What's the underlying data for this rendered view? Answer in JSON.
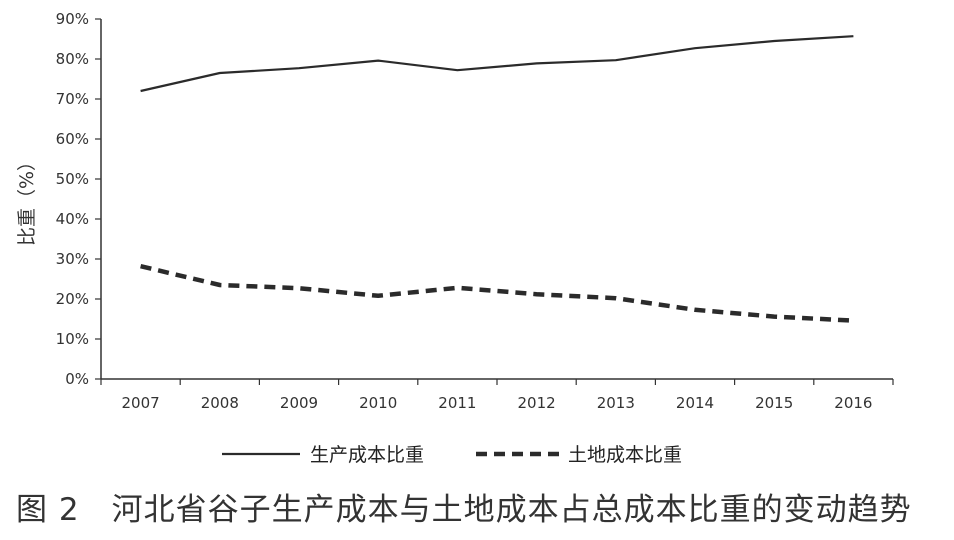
{
  "caption": "图 2　河北省谷子生产成本与土地成本占总成本比重的变动趋势",
  "chart_data": {
    "type": "line",
    "title": "",
    "xlabel": "",
    "ylabel": "比重（%）",
    "x": [
      "2007",
      "2008",
      "2009",
      "2010",
      "2011",
      "2012",
      "2013",
      "2014",
      "2015",
      "2016"
    ],
    "ylim": [
      0,
      90
    ],
    "yticks": [
      0,
      10,
      20,
      30,
      40,
      50,
      60,
      70,
      80,
      90
    ],
    "ytick_labels": [
      "0%",
      "10%",
      "20%",
      "30%",
      "40%",
      "50%",
      "60%",
      "70%",
      "80%",
      "90%"
    ],
    "grid": false,
    "legend_position": "bottom",
    "series": [
      {
        "name": "生产成本比重",
        "style": "solid",
        "color": "#2b2b2b",
        "values": [
          72.0,
          76.5,
          77.7,
          79.6,
          77.2,
          78.9,
          79.7,
          82.7,
          84.5,
          85.7
        ]
      },
      {
        "name": "土地成本比重",
        "style": "dashed",
        "color": "#2b2b2b",
        "values": [
          28.2,
          23.5,
          22.7,
          20.8,
          22.8,
          21.2,
          20.2,
          17.3,
          15.6,
          14.6
        ]
      }
    ]
  }
}
